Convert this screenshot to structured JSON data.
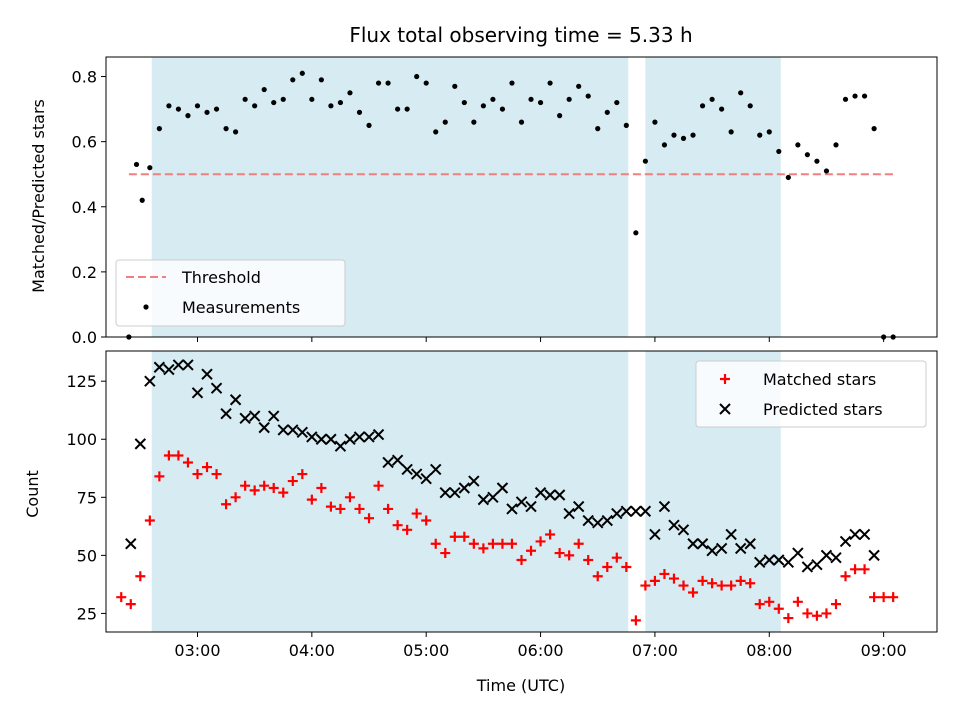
{
  "chart_data": [
    {
      "type": "scatter",
      "title": "Flux total observing time = 5.33 h",
      "xlabel": "",
      "ylabel": "Matched/Predicted stars",
      "xlim": [
        "02:12",
        "09:28"
      ],
      "ylim": [
        0,
        0.86
      ],
      "yticks": [
        0.0,
        0.2,
        0.4,
        0.6,
        0.8
      ],
      "xticks": [
        "03:00",
        "04:00",
        "05:00",
        "06:00",
        "07:00",
        "08:00",
        "09:00"
      ],
      "shaded_intervals": [
        [
          "02:36",
          "06:46"
        ],
        [
          "06:55",
          "08:06"
        ]
      ],
      "legend_position": "lower-left",
      "series": [
        {
          "name": "Threshold",
          "kind": "line",
          "style": "dashed",
          "color": "#f08080",
          "x": [
            "02:24",
            "09:06"
          ],
          "y": [
            0.5,
            0.5
          ]
        },
        {
          "name": "Measurements",
          "kind": "scatter",
          "marker": "dot",
          "color": "#000000",
          "x": [
            "02:24",
            "02:28",
            "02:31",
            "02:35",
            "02:40",
            "02:45",
            "02:50",
            "02:55",
            "03:00",
            "03:05",
            "03:10",
            "03:15",
            "03:20",
            "03:25",
            "03:30",
            "03:35",
            "03:40",
            "03:45",
            "03:50",
            "03:55",
            "04:00",
            "04:05",
            "04:10",
            "04:15",
            "04:20",
            "04:25",
            "04:30",
            "04:35",
            "04:40",
            "04:45",
            "04:50",
            "04:55",
            "05:00",
            "05:05",
            "05:10",
            "05:15",
            "05:20",
            "05:25",
            "05:30",
            "05:35",
            "05:40",
            "05:45",
            "05:50",
            "05:55",
            "06:00",
            "06:05",
            "06:10",
            "06:15",
            "06:20",
            "06:25",
            "06:30",
            "06:35",
            "06:40",
            "06:45",
            "06:50",
            "06:55",
            "07:00",
            "07:05",
            "07:10",
            "07:15",
            "07:20",
            "07:25",
            "07:30",
            "07:35",
            "07:40",
            "07:45",
            "07:50",
            "07:55",
            "08:00",
            "08:05",
            "08:10",
            "08:15",
            "08:20",
            "08:25",
            "08:30",
            "08:35",
            "08:40",
            "08:45",
            "08:50",
            "08:55",
            "09:00",
            "09:05"
          ],
          "y": [
            0.0,
            0.53,
            0.42,
            0.52,
            0.64,
            0.71,
            0.7,
            0.68,
            0.71,
            0.69,
            0.7,
            0.64,
            0.63,
            0.73,
            0.71,
            0.76,
            0.72,
            0.73,
            0.79,
            0.81,
            0.73,
            0.79,
            0.71,
            0.72,
            0.75,
            0.69,
            0.65,
            0.78,
            0.78,
            0.7,
            0.7,
            0.8,
            0.78,
            0.63,
            0.66,
            0.77,
            0.72,
            0.66,
            0.71,
            0.73,
            0.7,
            0.78,
            0.66,
            0.73,
            0.72,
            0.78,
            0.68,
            0.73,
            0.77,
            0.74,
            0.64,
            0.69,
            0.72,
            0.65,
            0.32,
            0.54,
            0.66,
            0.59,
            0.62,
            0.61,
            0.62,
            0.71,
            0.73,
            0.7,
            0.63,
            0.75,
            0.71,
            0.62,
            0.63,
            0.57,
            0.49,
            0.59,
            0.56,
            0.54,
            0.51,
            0.59,
            0.73,
            0.74,
            0.74,
            0.64,
            0.0,
            0.0
          ]
        }
      ]
    },
    {
      "type": "scatter",
      "title": "",
      "xlabel": "Time (UTC)",
      "ylabel": "Count",
      "xlim": [
        "02:12",
        "09:28"
      ],
      "ylim": [
        17,
        138
      ],
      "yticks": [
        25,
        50,
        75,
        100,
        125
      ],
      "xticks": [
        "03:00",
        "04:00",
        "05:00",
        "06:00",
        "07:00",
        "08:00",
        "09:00"
      ],
      "shaded_intervals": [
        [
          "02:36",
          "06:46"
        ],
        [
          "06:55",
          "08:06"
        ]
      ],
      "legend_position": "upper-right",
      "series": [
        {
          "name": "Matched stars",
          "marker": "plus",
          "color": "#ff0000",
          "x": [
            "02:20",
            "02:25",
            "02:30",
            "02:35",
            "02:40",
            "02:45",
            "02:50",
            "02:55",
            "03:00",
            "03:05",
            "03:10",
            "03:15",
            "03:20",
            "03:25",
            "03:30",
            "03:35",
            "03:40",
            "03:45",
            "03:50",
            "03:55",
            "04:00",
            "04:05",
            "04:10",
            "04:15",
            "04:20",
            "04:25",
            "04:30",
            "04:35",
            "04:40",
            "04:45",
            "04:50",
            "04:55",
            "05:00",
            "05:05",
            "05:10",
            "05:15",
            "05:20",
            "05:25",
            "05:30",
            "05:35",
            "05:40",
            "05:45",
            "05:50",
            "05:55",
            "06:00",
            "06:05",
            "06:10",
            "06:15",
            "06:20",
            "06:25",
            "06:30",
            "06:35",
            "06:40",
            "06:45",
            "06:50",
            "06:55",
            "07:00",
            "07:05",
            "07:10",
            "07:15",
            "07:20",
            "07:25",
            "07:30",
            "07:35",
            "07:40",
            "07:45",
            "07:50",
            "07:55",
            "08:00",
            "08:05",
            "08:10",
            "08:15",
            "08:20",
            "08:25",
            "08:30",
            "08:35",
            "08:40",
            "08:45",
            "08:50",
            "08:55",
            "09:00",
            "09:05"
          ],
          "y": [
            32,
            29,
            41,
            65,
            84,
            93,
            93,
            90,
            85,
            88,
            85,
            72,
            75,
            80,
            78,
            80,
            79,
            77,
            82,
            85,
            74,
            79,
            71,
            70,
            75,
            70,
            66,
            80,
            70,
            63,
            61,
            68,
            65,
            55,
            51,
            58,
            58,
            55,
            53,
            55,
            55,
            55,
            48,
            52,
            56,
            59,
            51,
            50,
            55,
            48,
            41,
            45,
            49,
            45,
            22,
            37,
            39,
            42,
            40,
            37,
            34,
            39,
            38,
            37,
            37,
            39,
            38,
            29,
            30,
            27,
            23,
            30,
            25,
            24,
            25,
            29,
            41,
            44,
            44,
            32,
            32,
            32
          ]
        },
        {
          "name": "Predicted stars",
          "marker": "cross",
          "color": "#000000",
          "x": [
            "02:25",
            "02:30",
            "02:35",
            "02:40",
            "02:45",
            "02:50",
            "02:55",
            "03:00",
            "03:05",
            "03:10",
            "03:15",
            "03:20",
            "03:25",
            "03:30",
            "03:35",
            "03:40",
            "03:45",
            "03:50",
            "03:55",
            "04:00",
            "04:05",
            "04:10",
            "04:15",
            "04:20",
            "04:25",
            "04:30",
            "04:35",
            "04:40",
            "04:45",
            "04:50",
            "04:55",
            "05:00",
            "05:05",
            "05:10",
            "05:15",
            "05:20",
            "05:25",
            "05:30",
            "05:35",
            "05:40",
            "05:45",
            "05:50",
            "05:55",
            "06:00",
            "06:05",
            "06:10",
            "06:15",
            "06:20",
            "06:25",
            "06:30",
            "06:35",
            "06:40",
            "06:45",
            "06:50",
            "06:55",
            "07:00",
            "07:05",
            "07:10",
            "07:15",
            "07:20",
            "07:25",
            "07:30",
            "07:35",
            "07:40",
            "07:45",
            "07:50",
            "07:55",
            "08:00",
            "08:05",
            "08:10",
            "08:15",
            "08:20",
            "08:25",
            "08:30",
            "08:35",
            "08:40",
            "08:45",
            "08:50",
            "08:55"
          ],
          "y": [
            55,
            98,
            125,
            131,
            130,
            132,
            132,
            120,
            128,
            122,
            111,
            117,
            109,
            110,
            105,
            110,
            104,
            104,
            103,
            101,
            100,
            100,
            97,
            100,
            101,
            101,
            102,
            90,
            91,
            87,
            85,
            83,
            87,
            77,
            77,
            79,
            82,
            74,
            75,
            79,
            70,
            73,
            71,
            77,
            76,
            76,
            68,
            71,
            65,
            64,
            65,
            68,
            69,
            69,
            69,
            59,
            71,
            63,
            61,
            55,
            55,
            52,
            53,
            59,
            53,
            55,
            47,
            48,
            48,
            47,
            51,
            45,
            46,
            50,
            49,
            56,
            59,
            59,
            50
          ]
        }
      ]
    }
  ]
}
